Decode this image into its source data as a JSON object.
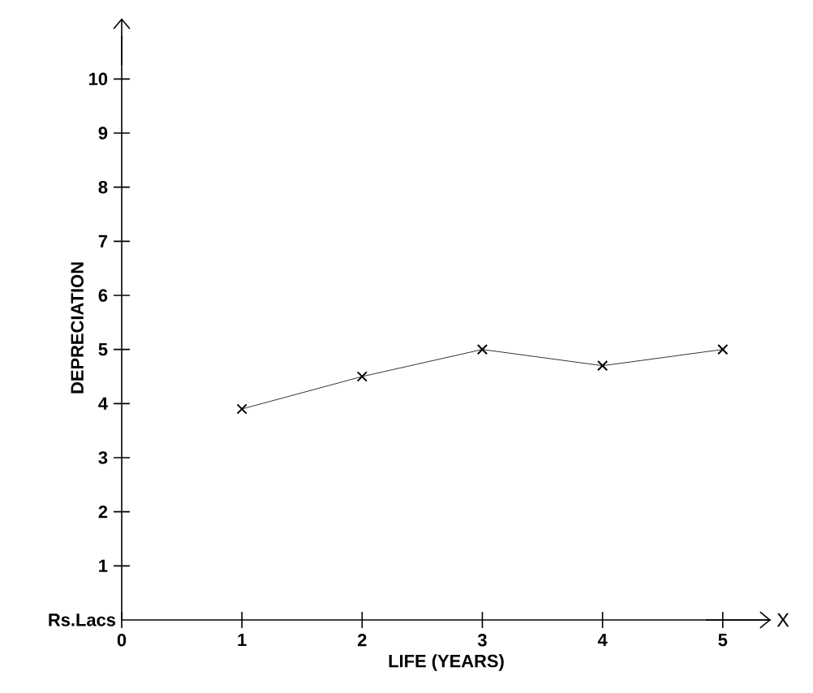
{
  "chart_data": {
    "type": "line",
    "x": [
      1,
      2,
      3,
      4,
      5
    ],
    "series": [
      {
        "color": "#000000",
        "values": [
          3.9,
          4.5,
          5.0,
          4.7,
          5.0
        ]
      }
    ],
    "xlim": [
      0,
      5.4
    ],
    "ylim": [
      0,
      10.8
    ],
    "xticks": [
      0,
      1,
      2,
      3,
      4,
      5
    ],
    "yticks": [
      1,
      2,
      3,
      4,
      5,
      6,
      7,
      8,
      9,
      10
    ],
    "xlabel": "LIFE (YEARS)",
    "ylabel": "DEPRECIATION",
    "annotations": [
      "Rs.Lacs",
      "X"
    ],
    "marker": "cross",
    "line_style": "solid"
  }
}
